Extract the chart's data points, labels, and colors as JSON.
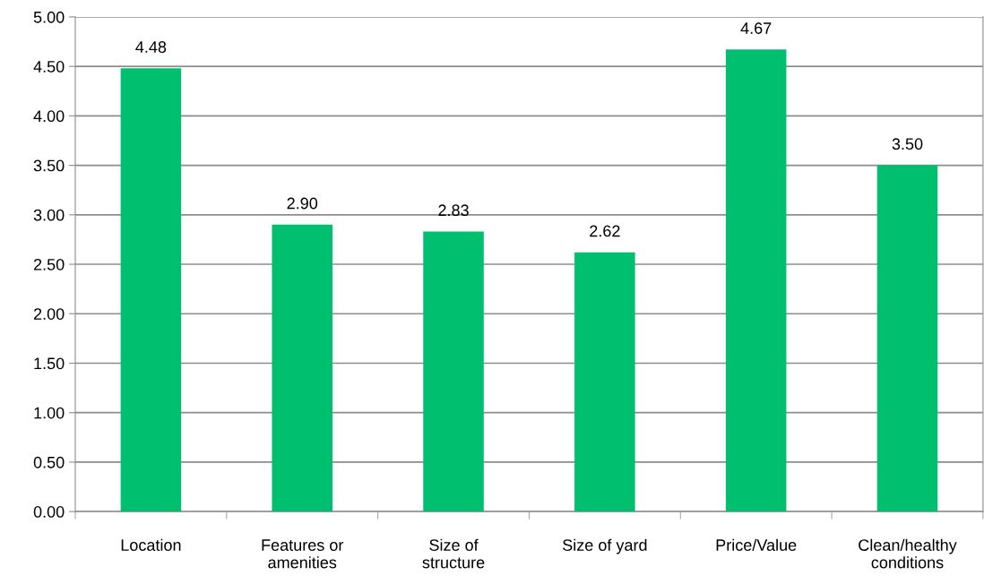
{
  "chart_data": {
    "type": "bar",
    "categories": [
      "Location",
      "Features or\namenities",
      "Size of\nstructure",
      "Size of yard",
      "Price/Value",
      "Clean/healthy\nconditions"
    ],
    "values": [
      4.48,
      2.9,
      2.83,
      2.62,
      4.67,
      3.5
    ],
    "value_labels": [
      "4.48",
      "2.90",
      "2.83",
      "2.62",
      "4.67",
      "3.50"
    ],
    "color": "#00bf6f",
    "ylim": [
      0,
      5
    ],
    "yticks": [
      {
        "value": 0,
        "label": "0.00"
      },
      {
        "value": 0.5,
        "label": "0.50"
      },
      {
        "value": 1,
        "label": "1.00"
      },
      {
        "value": 1.5,
        "label": "1.50"
      },
      {
        "value": 2,
        "label": "2.00"
      },
      {
        "value": 2.5,
        "label": "2.50"
      },
      {
        "value": 3,
        "label": "3.00"
      },
      {
        "value": 3.5,
        "label": "3.50"
      },
      {
        "value": 4,
        "label": "4.00"
      },
      {
        "value": 4.5,
        "label": "4.50"
      },
      {
        "value": 5,
        "label": "5.00"
      }
    ],
    "grid": "y",
    "legend": false
  }
}
